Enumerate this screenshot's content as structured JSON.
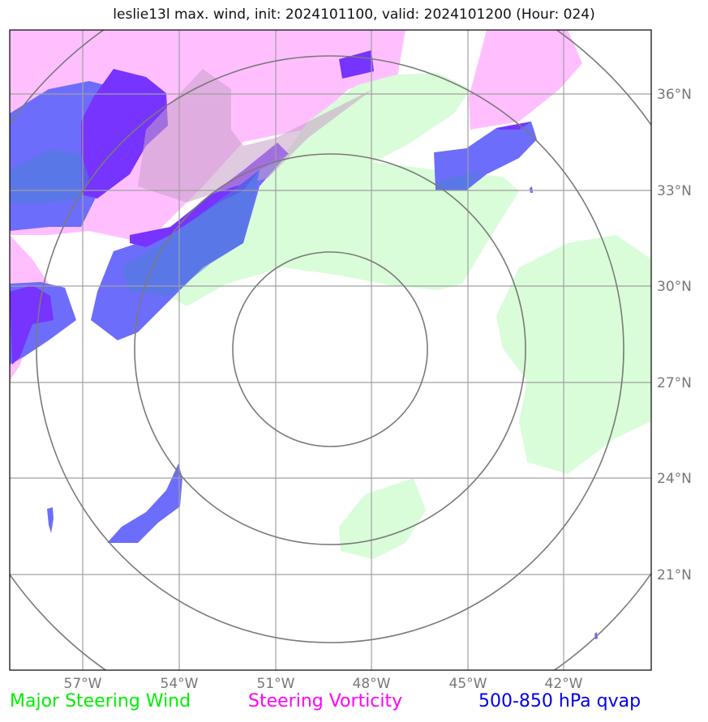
{
  "title": "leslie13l max. wind, init: 2024101100, valid: 2024101200 (Hour: 024)",
  "legend": {
    "wind": "Major Steering Wind",
    "vorticity": "Steering Vorticity",
    "qvap": "500-850 hPa qvap"
  },
  "legend_colors": {
    "wind": "#00ee00",
    "vorticity": "#ff00ff",
    "qvap": "#0000ee"
  },
  "layer_colors": {
    "wind_fill": "#d9fdd9",
    "vorticity_fill": "#ffbfff",
    "qvap_fill": "#6d6dfb",
    "qvap_dark": "#7733ff",
    "grid": "#a0a0a0",
    "rings": "#7a7a7a"
  },
  "lon_labels": [
    "57°W",
    "54°W",
    "51°W",
    "48°W",
    "45°W",
    "42°W"
  ],
  "lat_labels": [
    "36°N",
    "33°N",
    "30°N",
    "27°N",
    "24°N",
    "21°N"
  ]
}
